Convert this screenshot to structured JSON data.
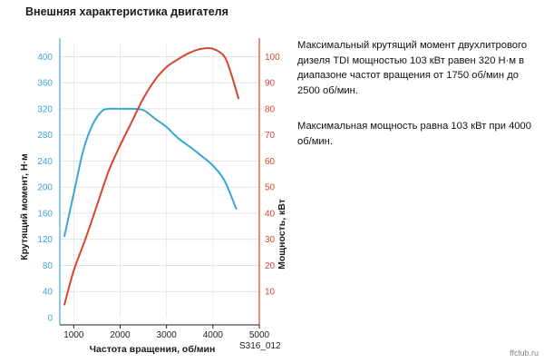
{
  "title": "Внешняя характеристика двигателя",
  "description": {
    "torque_text": "Максимальный крутящий момент двухлитрового дизеля TDI мощностью 103 кВт равен 320 Н·м в диапазоне частот вращения от 1750 об/мин до 2500 об/мин.",
    "power_text": "Максимальная мощность равна 103 кВт при 4000 об/мин."
  },
  "figure_id": "S316_012",
  "watermark": "ffclub.ru",
  "chart_data": {
    "type": "line",
    "xlabel": "Частота вращения, об/мин",
    "ylabel_left": "Крутящий момент, Н·м",
    "ylabel_right": "Мощность, кВт",
    "xlim": [
      700,
      5000
    ],
    "ylim_left": [
      0,
      420
    ],
    "ylim_right": [
      0,
      105
    ],
    "xticks": [
      1000,
      2000,
      3000,
      4000,
      5000
    ],
    "yticks_left": [
      0,
      40,
      80,
      120,
      160,
      200,
      240,
      280,
      320,
      360,
      400
    ],
    "yticks_right": [
      10,
      20,
      30,
      40,
      50,
      60,
      70,
      80,
      90,
      100
    ],
    "colors": {
      "torque": "#3aa6d8",
      "power": "#d8452c",
      "left_axis": "#3aa6d8",
      "right_axis": "#d8452c"
    },
    "series": [
      {
        "key": "torque",
        "axis": "left",
        "x": [
          800,
          1000,
          1200,
          1400,
          1600,
          1750,
          2000,
          2250,
          2500,
          2750,
          3000,
          3250,
          3500,
          3750,
          4000,
          4250,
          4500
        ],
        "values": [
          125,
          190,
          255,
          295,
          316,
          320,
          320,
          320,
          318,
          305,
          292,
          275,
          262,
          248,
          233,
          210,
          167
        ]
      },
      {
        "key": "power",
        "axis": "right",
        "x": [
          800,
          1000,
          1250,
          1500,
          1750,
          2000,
          2250,
          2500,
          2750,
          3000,
          3250,
          3500,
          3750,
          4000,
          4250,
          4400,
          4550
        ],
        "values": [
          5,
          18,
          30,
          43,
          56,
          66,
          75,
          84,
          91,
          96,
          99,
          101.5,
          103,
          103,
          100,
          93,
          84
        ]
      }
    ]
  }
}
